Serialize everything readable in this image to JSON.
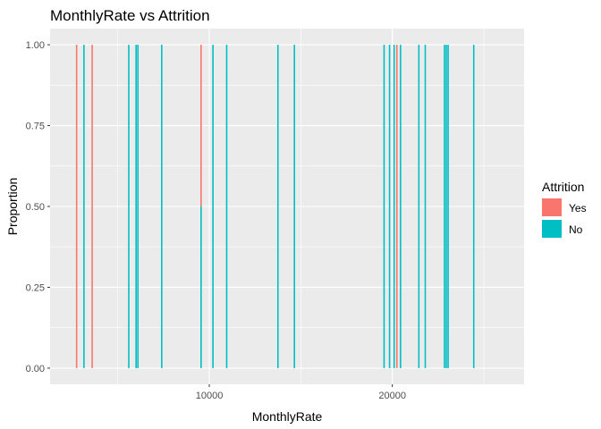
{
  "chart_data": {
    "type": "bar",
    "subtype": "stacked-proportion (position=fill)",
    "title": "MonthlyRate vs Attrition",
    "xlabel": "MonthlyRate",
    "ylabel": "Proportion",
    "xlim": [
      1300,
      27200
    ],
    "ylim": [
      -0.05,
      1.05
    ],
    "x_ticks": [
      10000,
      20000
    ],
    "x_tick_labels": [
      "10000",
      "20000"
    ],
    "y_ticks": [
      0,
      0.25,
      0.5,
      0.75,
      1
    ],
    "y_tick_labels": [
      "0.00",
      "0.25",
      "0.50",
      "0.75",
      "1.00"
    ],
    "grid": true,
    "legend": {
      "title": "Attrition",
      "position": "right"
    },
    "series": [
      {
        "name": "Yes",
        "color": "#F8766D"
      },
      {
        "name": "No",
        "color": "#00BFC4"
      }
    ],
    "bars": [
      {
        "x": 2750,
        "yes": 1.0,
        "no": 0.0
      },
      {
        "x": 3150,
        "yes": 0.0,
        "no": 1.0
      },
      {
        "x": 3600,
        "yes": 1.0,
        "no": 0.0
      },
      {
        "x": 5600,
        "yes": 0.0,
        "no": 1.0
      },
      {
        "x": 6000,
        "yes": 0.0,
        "no": 1.0
      },
      {
        "x": 6100,
        "yes": 0.0,
        "no": 1.0
      },
      {
        "x": 7400,
        "yes": 0.0,
        "no": 1.0
      },
      {
        "x": 9550,
        "yes": 0.5,
        "no": 0.5
      },
      {
        "x": 10200,
        "yes": 0.0,
        "no": 1.0
      },
      {
        "x": 10950,
        "yes": 0.0,
        "no": 1.0
      },
      {
        "x": 13750,
        "yes": 0.0,
        "no": 1.0
      },
      {
        "x": 14650,
        "yes": 0.0,
        "no": 1.0
      },
      {
        "x": 19550,
        "yes": 0.0,
        "no": 1.0
      },
      {
        "x": 19850,
        "yes": 0.0,
        "no": 1.0
      },
      {
        "x": 20100,
        "yes": 0.0,
        "no": 1.0
      },
      {
        "x": 20250,
        "yes": 1.0,
        "no": 0.0
      },
      {
        "x": 20450,
        "yes": 0.0,
        "no": 1.0
      },
      {
        "x": 21450,
        "yes": 0.0,
        "no": 1.0
      },
      {
        "x": 21800,
        "yes": 0.0,
        "no": 1.0
      },
      {
        "x": 22850,
        "yes": 0.0,
        "no": 1.0
      },
      {
        "x": 22950,
        "yes": 0.0,
        "no": 1.0
      },
      {
        "x": 23050,
        "yes": 0.0,
        "no": 1.0
      },
      {
        "x": 24450,
        "yes": 0.0,
        "no": 1.0
      }
    ],
    "panel_background": "#EBEBEB",
    "grid_color": "#FFFFFF"
  }
}
